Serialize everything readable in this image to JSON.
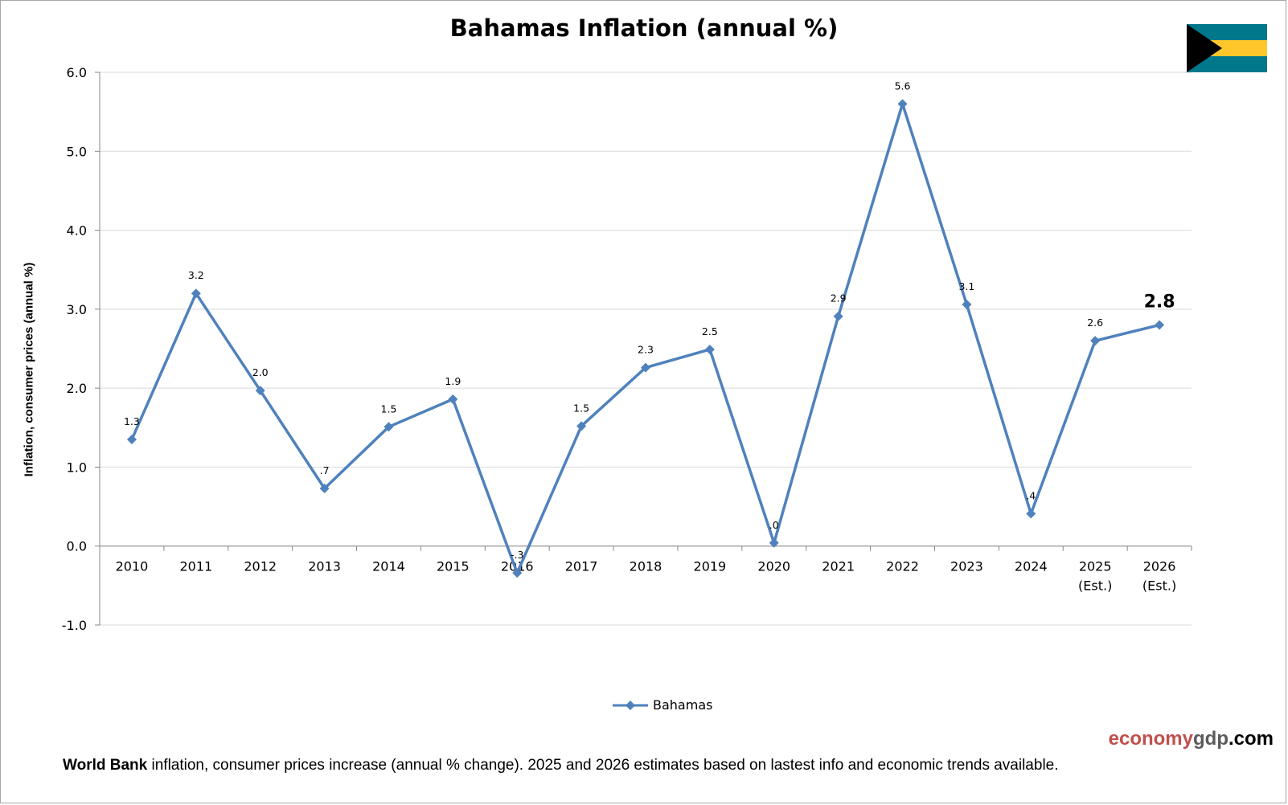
{
  "chart_data": {
    "type": "line",
    "title": "Bahamas Inflation (annual %)",
    "ylabel": "Inflation, consumer prices (annual %)",
    "xlabel": "",
    "ylim": [
      -1.0,
      6.0
    ],
    "yticks": [
      "-1.0",
      "0.0",
      "1.0",
      "2.0",
      "3.0",
      "4.0",
      "5.0",
      "6.0"
    ],
    "grid": true,
    "legend_position": "bottom-center",
    "categories": [
      [
        "2010"
      ],
      [
        "2011"
      ],
      [
        "2012"
      ],
      [
        "2013"
      ],
      [
        "2014"
      ],
      [
        "2015"
      ],
      [
        "2016"
      ],
      [
        "2017"
      ],
      [
        "2018"
      ],
      [
        "2019"
      ],
      [
        "2020"
      ],
      [
        "2021"
      ],
      [
        "2022"
      ],
      [
        "2023"
      ],
      [
        "2024"
      ],
      [
        "2025",
        "(Est.)"
      ],
      [
        "2026",
        "(Est.)"
      ]
    ],
    "series": [
      {
        "name": "Bahamas",
        "color": "#4f81bd",
        "values": [
          1.35,
          3.2,
          1.97,
          0.73,
          1.51,
          1.86,
          -0.34,
          1.52,
          2.26,
          2.49,
          0.04,
          2.91,
          5.6,
          3.06,
          0.41,
          2.6,
          2.8
        ],
        "labels": [
          "1.3",
          "3.2",
          "2.0",
          ".7",
          "1.5",
          "1.9",
          "-.3",
          "1.5",
          "2.3",
          "2.5",
          ".0",
          "2.9",
          "5.6",
          "3.1",
          ".4",
          "2.6",
          "2.8"
        ]
      }
    ],
    "highlight_index": 16
  },
  "flag": {
    "name": "bahamas-flag-icon",
    "colors": {
      "aquamarine": "#00778b",
      "gold": "#ffc72c",
      "black": "#000000"
    }
  },
  "watermark": {
    "part1": "economy",
    "part2": "gdp",
    "part3": ".com"
  },
  "footnote": {
    "source": "World Bank",
    "text": " inflation, consumer prices increase (annual % change).  2025 and 2026 estimates based on lastest info and economic trends available."
  },
  "colors": {
    "gridline": "#d9d9d9",
    "axis": "#868686",
    "series": "#4f81bd",
    "brand_red": "#c0504d"
  }
}
